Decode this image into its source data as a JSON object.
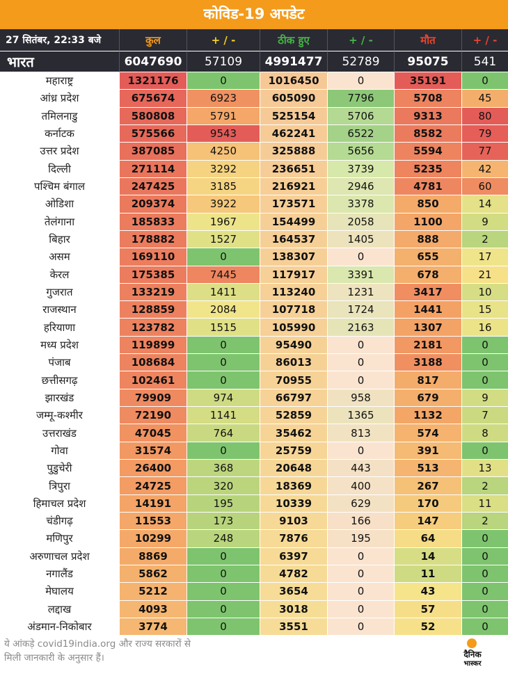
{
  "title": "कोविड-19 अपडेट",
  "header": {
    "timestamp": "27 सितंबर, 22:33 बजे",
    "columns": [
      "कुल",
      "+ / -",
      "ठीक हुए",
      "+ / -",
      "मौत",
      "+ / -"
    ],
    "colors": [
      "#f49b1b",
      "#f4d21b",
      "#47b546",
      "#47b546",
      "#e8452e",
      "#e8452e"
    ]
  },
  "national": {
    "name": "भारत",
    "values": [
      "6047690",
      "57109",
      "4991477",
      "52789",
      "95075",
      "541"
    ]
  },
  "rows": [
    {
      "name": "महाराष्ट्र",
      "v": [
        "1321176",
        "0",
        "1016450",
        "0",
        "35191",
        "0"
      ]
    },
    {
      "name": "आंध्र प्रदेश",
      "v": [
        "675674",
        "6923",
        "605090",
        "7796",
        "5708",
        "45"
      ]
    },
    {
      "name": "तमिलनाडु",
      "v": [
        "580808",
        "5791",
        "525154",
        "5706",
        "9313",
        "80"
      ]
    },
    {
      "name": "कर्नाटक",
      "v": [
        "575566",
        "9543",
        "462241",
        "6522",
        "8582",
        "79"
      ]
    },
    {
      "name": "उत्तर प्रदेश",
      "v": [
        "387085",
        "4250",
        "325888",
        "5656",
        "5594",
        "77"
      ]
    },
    {
      "name": "दिल्ली",
      "v": [
        "271114",
        "3292",
        "236651",
        "3739",
        "5235",
        "42"
      ]
    },
    {
      "name": "पश्चिम बंगाल",
      "v": [
        "247425",
        "3185",
        "216921",
        "2946",
        "4781",
        "60"
      ]
    },
    {
      "name": "ओडिशा",
      "v": [
        "209374",
        "3922",
        "173571",
        "3378",
        "850",
        "14"
      ]
    },
    {
      "name": "तेलंगाना",
      "v": [
        "185833",
        "1967",
        "154499",
        "2058",
        "1100",
        "9"
      ]
    },
    {
      "name": "बिहार",
      "v": [
        "178882",
        "1527",
        "164537",
        "1405",
        "888",
        "2"
      ]
    },
    {
      "name": "असम",
      "v": [
        "169110",
        "0",
        "138307",
        "0",
        "655",
        "17"
      ]
    },
    {
      "name": "केरल",
      "v": [
        "175385",
        "7445",
        "117917",
        "3391",
        "678",
        "21"
      ]
    },
    {
      "name": "गुजरात",
      "v": [
        "133219",
        "1411",
        "113240",
        "1231",
        "3417",
        "10"
      ]
    },
    {
      "name": "राजस्थान",
      "v": [
        "128859",
        "2084",
        "107718",
        "1724",
        "1441",
        "15"
      ]
    },
    {
      "name": "हरियाणा",
      "v": [
        "123782",
        "1515",
        "105990",
        "2163",
        "1307",
        "16"
      ]
    },
    {
      "name": "मध्य प्रदेश",
      "v": [
        "119899",
        "0",
        "95490",
        "0",
        "2181",
        "0"
      ]
    },
    {
      "name": "पंजाब",
      "v": [
        "108684",
        "0",
        "86013",
        "0",
        "3188",
        "0"
      ]
    },
    {
      "name": "छत्तीसगढ़",
      "v": [
        "102461",
        "0",
        "70955",
        "0",
        "817",
        "0"
      ]
    },
    {
      "name": "झारखंड",
      "v": [
        "79909",
        "974",
        "66797",
        "958",
        "679",
        "9"
      ]
    },
    {
      "name": "जम्मू-कश्मीर",
      "v": [
        "72190",
        "1141",
        "52859",
        "1365",
        "1132",
        "7"
      ]
    },
    {
      "name": "उत्तराखंड",
      "v": [
        "47045",
        "764",
        "35462",
        "813",
        "574",
        "8"
      ]
    },
    {
      "name": "गोवा",
      "v": [
        "31574",
        "0",
        "25759",
        "0",
        "391",
        "0"
      ]
    },
    {
      "name": "पुडुचेरी",
      "v": [
        "26400",
        "368",
        "20648",
        "443",
        "513",
        "13"
      ]
    },
    {
      "name": "त्रिपुरा",
      "v": [
        "24725",
        "320",
        "18369",
        "400",
        "267",
        "2"
      ]
    },
    {
      "name": "हिमाचल प्रदेश",
      "v": [
        "14191",
        "195",
        "10339",
        "629",
        "170",
        "11"
      ]
    },
    {
      "name": "चंडीगढ़",
      "v": [
        "11553",
        "173",
        "9103",
        "166",
        "147",
        "2"
      ]
    },
    {
      "name": "मणिपुर",
      "v": [
        "10299",
        "248",
        "7876",
        "195",
        "64",
        "0"
      ]
    },
    {
      "name": "अरुणाचल प्रदेश",
      "v": [
        "8869",
        "0",
        "6397",
        "0",
        "14",
        "0"
      ]
    },
    {
      "name": "नगालैंड",
      "v": [
        "5862",
        "0",
        "4782",
        "0",
        "11",
        "0"
      ]
    },
    {
      "name": "मेघालय",
      "v": [
        "5212",
        "0",
        "3654",
        "0",
        "43",
        "0"
      ]
    },
    {
      "name": "लद्दाख",
      "v": [
        "4093",
        "0",
        "3018",
        "0",
        "57",
        "0"
      ]
    },
    {
      "name": "अंडमान-निकोबार",
      "v": [
        "3774",
        "0",
        "3551",
        "0",
        "52",
        "0"
      ]
    }
  ],
  "footer": {
    "note_line1": "ये आंकड़े covid19india.org और राज्य सरकारों से",
    "note_line2": "मिली जानकारी के अनुसार हैं।",
    "logo_line1": "दैनिक",
    "logo_line2": "भास्कर"
  },
  "colors": {
    "accent": "#f49b1b",
    "header_bg": "#2a2a33"
  }
}
